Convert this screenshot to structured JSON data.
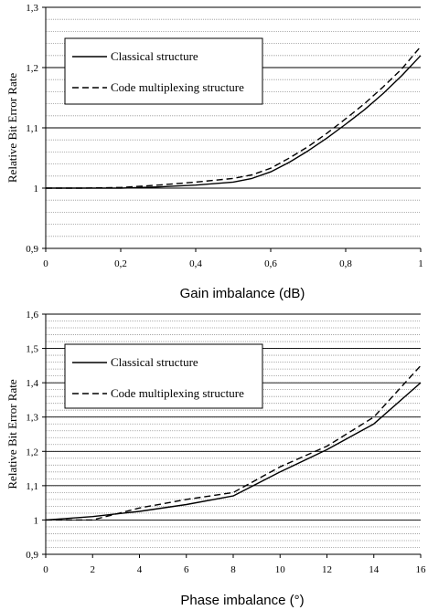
{
  "chart_data": [
    {
      "type": "line",
      "xlabel": "Gain imbalance (dB)",
      "ylabel": "Relative Bit Error Rate",
      "xlim": [
        0,
        1
      ],
      "ylim": [
        0.9,
        1.3
      ],
      "xticks": [
        "0",
        "0,2",
        "0,4",
        "0,6",
        "0,8",
        "1"
      ],
      "xtick_values": [
        0,
        0.2,
        0.4,
        0.6,
        0.8,
        1.0
      ],
      "yticks": [
        "0,9",
        "1",
        "1,1",
        "1,2",
        "1,3"
      ],
      "ytick_values": [
        0.9,
        1.0,
        1.1,
        1.2,
        1.3
      ],
      "grid": "horizontal",
      "legend": "top-left",
      "series": [
        {
          "name": "Classical structure",
          "style": "solid",
          "x": [
            0,
            0.1,
            0.2,
            0.3,
            0.4,
            0.5,
            0.55,
            0.6,
            0.65,
            0.7,
            0.75,
            0.8,
            0.85,
            0.9,
            0.95,
            1.0
          ],
          "values": [
            1.0,
            1.0,
            1.0,
            1.002,
            1.005,
            1.01,
            1.016,
            1.027,
            1.043,
            1.062,
            1.083,
            1.106,
            1.13,
            1.157,
            1.187,
            1.22
          ]
        },
        {
          "name": "Code multiplexing structure",
          "style": "dashed",
          "x": [
            0,
            0.1,
            0.2,
            0.3,
            0.4,
            0.5,
            0.55,
            0.6,
            0.65,
            0.7,
            0.75,
            0.8,
            0.85,
            0.9,
            0.95,
            1.0
          ],
          "values": [
            1.0,
            1.0,
            1.001,
            1.005,
            1.01,
            1.016,
            1.022,
            1.033,
            1.05,
            1.069,
            1.091,
            1.115,
            1.14,
            1.168,
            1.198,
            1.235
          ]
        }
      ]
    },
    {
      "type": "line",
      "xlabel": "Phase imbalance (°)",
      "ylabel": "Relative Bit Error Rate",
      "xlim": [
        0,
        16
      ],
      "ylim": [
        0.9,
        1.6
      ],
      "xticks": [
        "0",
        "2",
        "4",
        "6",
        "8",
        "10",
        "12",
        "14",
        "16"
      ],
      "xtick_values": [
        0,
        2,
        4,
        6,
        8,
        10,
        12,
        14,
        16
      ],
      "yticks": [
        "0,9",
        "1",
        "1,1",
        "1,2",
        "1,3",
        "1,4",
        "1,5",
        "1,6"
      ],
      "ytick_values": [
        0.9,
        1.0,
        1.1,
        1.2,
        1.3,
        1.4,
        1.5,
        1.6
      ],
      "grid": "horizontal",
      "legend": "top-left",
      "series": [
        {
          "name": "Classical structure",
          "style": "solid",
          "x": [
            0,
            2,
            4,
            6,
            8,
            10,
            12,
            14,
            16
          ],
          "values": [
            1.0,
            1.01,
            1.025,
            1.045,
            1.07,
            1.14,
            1.205,
            1.28,
            1.4
          ]
        },
        {
          "name": "Code multiplexing structure",
          "style": "dashed",
          "x": [
            0,
            2,
            4,
            6,
            8,
            10,
            12,
            14,
            16
          ],
          "values": [
            1.0,
            1.0,
            1.035,
            1.06,
            1.08,
            1.155,
            1.215,
            1.3,
            1.45
          ]
        }
      ]
    }
  ]
}
